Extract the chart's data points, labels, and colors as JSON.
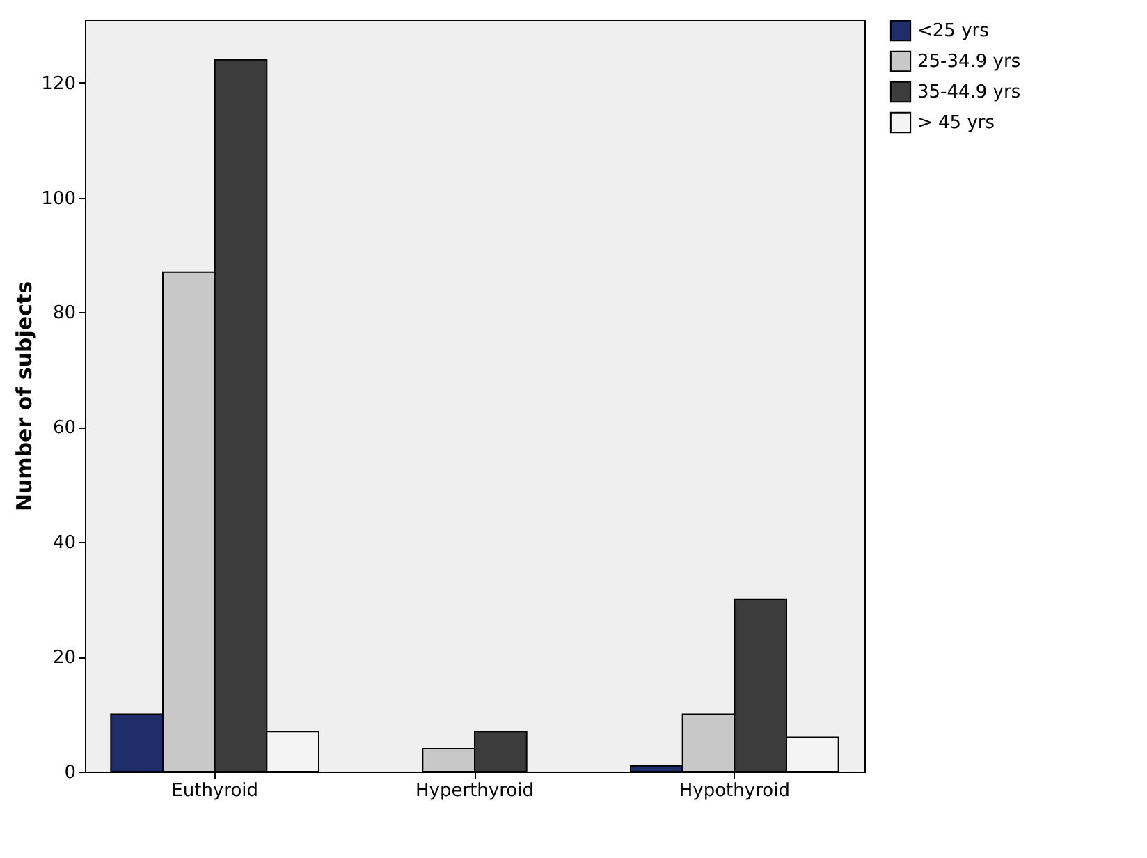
{
  "chart_data": {
    "type": "bar",
    "ylabel": "Number of subjects",
    "categories": [
      "Euthyroid",
      "Hyperthyroid",
      "Hypothyroid"
    ],
    "series": [
      {
        "name": "<25 yrs",
        "color": "#1f2d6b",
        "values": [
          10,
          null,
          1
        ]
      },
      {
        "name": "25-34.9 yrs",
        "color": "#c8c8c8",
        "values": [
          87,
          4,
          10
        ]
      },
      {
        "name": "35-44.9 yrs",
        "color": "#3c3c3c",
        "values": [
          124,
          7,
          30
        ]
      },
      {
        "name": "> 45 yrs",
        "color": "#f4f4f4",
        "values": [
          7,
          null,
          6
        ]
      }
    ],
    "ylim": [
      0,
      131
    ],
    "yticks": [
      0,
      20,
      40,
      60,
      80,
      100,
      120
    ],
    "grid": false,
    "legend": "top right"
  }
}
